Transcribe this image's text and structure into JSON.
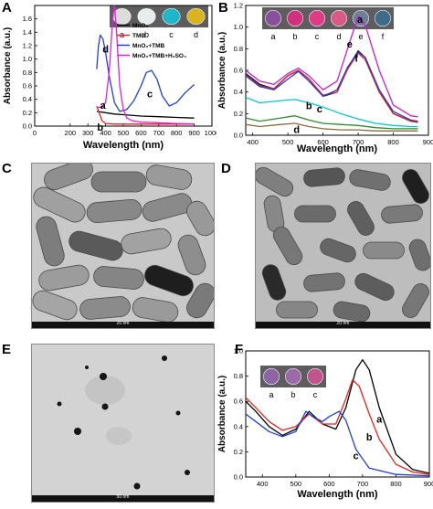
{
  "panels": {
    "A": {
      "label": "A",
      "chart_data": {
        "type": "line",
        "xlabel": "Wavelength (nm)",
        "ylabel": "Absorbance (a.u.)",
        "xlim": [
          0,
          1000
        ],
        "ylim": [
          0,
          1.8
        ],
        "xticks": [
          0,
          200,
          300,
          400,
          500,
          600,
          700,
          800,
          900,
          1000
        ],
        "xtick_labels": [
          "0",
          "200",
          "300",
          "400",
          "500",
          "600",
          "700",
          "800",
          "900",
          "1000"
        ],
        "yticks": [
          0.0,
          0.2,
          0.4,
          0.6,
          0.8,
          1.0,
          1.2,
          1.4,
          1.6
        ],
        "ytick_labels": [
          "0.0",
          "0.2",
          "0.4",
          "0.6",
          "0.8",
          "1.0",
          "1.2",
          "1.4",
          "1.6"
        ],
        "legend": {
          "placement": "top-right",
          "entries": [
            {
              "series_index": 0,
              "label": "MnO₂"
            },
            {
              "series_index": 1,
              "label": "TMB"
            },
            {
              "series_index": 2,
              "label": "MnO₂+TMB"
            },
            {
              "series_index": 3,
              "label": "MnO₂+TMB+H₂SO₄"
            }
          ]
        },
        "series": [
          {
            "color": "#000000",
            "x": [
              350,
              400,
              450,
              500,
              600,
              700,
              800,
              900
            ],
            "y": [
              0.22,
              0.2,
              0.18,
              0.17,
              0.15,
              0.14,
              0.13,
              0.12
            ]
          },
          {
            "color": "#e8221b",
            "x": [
              350,
              380,
              400,
              450,
              500,
              600,
              700,
              800,
              900
            ],
            "y": [
              0.3,
              0.08,
              0.04,
              0.03,
              0.03,
              0.03,
              0.03,
              0.03,
              0.03
            ]
          },
          {
            "color": "#1f3fd6",
            "x": [
              350,
              360,
              370,
              385,
              400,
              420,
              450,
              480,
              520,
              560,
              600,
              630,
              660,
              690,
              720,
              760,
              800,
              850,
              900
            ],
            "y": [
              0.85,
              1.2,
              1.36,
              1.3,
              1.1,
              0.75,
              0.35,
              0.22,
              0.25,
              0.38,
              0.6,
              0.8,
              0.83,
              0.7,
              0.45,
              0.3,
              0.35,
              0.5,
              0.62
            ]
          },
          {
            "color": "#e21ee0",
            "x": [
              350,
              380,
              400,
              420,
              440,
              450,
              460,
              480,
              500,
              520,
              550,
              600,
              700,
              800,
              900
            ],
            "y": [
              0.28,
              0.28,
              0.35,
              0.8,
              1.6,
              1.8,
              1.5,
              0.6,
              0.25,
              0.12,
              0.08,
              0.06,
              0.05,
              0.04,
              0.03
            ]
          }
        ],
        "annotations": [
          {
            "text": "a",
            "x": 385,
            "y": 0.26
          },
          {
            "text": "b",
            "x": 370,
            "y": -0.07
          },
          {
            "text": "c",
            "x": 650,
            "y": 0.43
          },
          {
            "text": "d",
            "x": 400,
            "y": 1.1
          }
        ],
        "inset_vials": {
          "labels": [
            "a",
            "b",
            "c",
            "d"
          ],
          "colors": [
            "#dcdcd8",
            "#e9ecec",
            "#1fb6c9",
            "#d9b51b"
          ]
        }
      }
    },
    "B": {
      "label": "B",
      "chart_data": {
        "type": "line",
        "xlabel": "Wavelength (nm)",
        "ylabel": "Absorbance (a.u.)",
        "xlim": [
          380,
          900
        ],
        "ylim": [
          0,
          1.2
        ],
        "xticks": [
          400,
          500,
          600,
          700,
          800,
          900
        ],
        "xtick_labels": [
          "400",
          "500",
          "600",
          "700",
          "800",
          "900"
        ],
        "yticks": [
          0.0,
          0.2,
          0.4,
          0.6,
          0.8,
          1.0,
          1.2
        ],
        "ytick_labels": [
          "0.0",
          "0.2",
          "0.4",
          "0.6",
          "0.8",
          "1.0",
          "1.2"
        ],
        "series": [
          {
            "color": "#8b6a3a",
            "x": [
              380,
              420,
              480,
              520,
              560,
              600,
              650,
              700,
              750,
              800,
              850,
              870
            ],
            "y": [
              0.1,
              0.08,
              0.1,
              0.11,
              0.08,
              0.06,
              0.05,
              0.05,
              0.04,
              0.04,
              0.04,
              0.04
            ]
          },
          {
            "color": "#2e8b2e",
            "x": [
              380,
              420,
              480,
              520,
              560,
              600,
              650,
              700,
              750,
              800,
              850,
              870
            ],
            "y": [
              0.16,
              0.13,
              0.16,
              0.18,
              0.14,
              0.11,
              0.1,
              0.09,
              0.07,
              0.06,
              0.06,
              0.06
            ]
          },
          {
            "color": "#00c8d2",
            "x": [
              380,
              420,
              480,
              520,
              560,
              600,
              650,
              700,
              750,
              800,
              850,
              870
            ],
            "y": [
              0.35,
              0.3,
              0.32,
              0.33,
              0.3,
              0.26,
              0.2,
              0.15,
              0.11,
              0.09,
              0.08,
              0.08
            ]
          },
          {
            "color": "#000000",
            "x": [
              380,
              420,
              460,
              500,
              530,
              560,
              600,
              640,
              670,
              700,
              720,
              760,
              800,
              850,
              870
            ],
            "y": [
              0.57,
              0.47,
              0.43,
              0.55,
              0.6,
              0.52,
              0.36,
              0.4,
              0.62,
              0.78,
              0.72,
              0.4,
              0.2,
              0.13,
              0.12
            ]
          },
          {
            "color": "#e8221b",
            "x": [
              380,
              420,
              460,
              500,
              530,
              560,
              600,
              640,
              670,
              700,
              720,
              760,
              800,
              850,
              870
            ],
            "y": [
              0.56,
              0.46,
              0.43,
              0.55,
              0.6,
              0.52,
              0.37,
              0.4,
              0.61,
              0.76,
              0.7,
              0.4,
              0.2,
              0.13,
              0.12
            ]
          },
          {
            "color": "#1f3fd6",
            "x": [
              380,
              420,
              460,
              500,
              530,
              560,
              600,
              640,
              670,
              700,
              720,
              760,
              800,
              850,
              870
            ],
            "y": [
              0.55,
              0.45,
              0.42,
              0.52,
              0.59,
              0.5,
              0.36,
              0.42,
              0.63,
              0.77,
              0.72,
              0.42,
              0.22,
              0.14,
              0.13
            ]
          },
          {
            "color": "#c21ee2",
            "x": [
              380,
              420,
              460,
              500,
              530,
              560,
              600,
              640,
              670,
              700,
              720,
              760,
              800,
              850,
              870
            ],
            "y": [
              0.6,
              0.5,
              0.47,
              0.57,
              0.62,
              0.55,
              0.42,
              0.5,
              0.8,
              1.1,
              1.02,
              0.6,
              0.28,
              0.18,
              0.17
            ]
          }
        ],
        "annotations": [
          {
            "text": "a",
            "x": 705,
            "y": 1.04
          },
          {
            "text": "b",
            "x": 560,
            "y": 0.24
          },
          {
            "text": "c",
            "x": 590,
            "y": 0.21
          },
          {
            "text": "d",
            "x": 525,
            "y": 0.02
          },
          {
            "text": "e",
            "x": 676,
            "y": 0.81
          },
          {
            "text": "f",
            "x": 695,
            "y": 0.68
          }
        ],
        "inset_vials": {
          "labels": [
            "a",
            "b",
            "c",
            "d",
            "e",
            "f"
          ],
          "colors": [
            "#8a4f9a",
            "#d22f7e",
            "#de3a86",
            "#d95a86",
            "#6f7f95",
            "#3e6a8c"
          ]
        }
      }
    },
    "C": {
      "label": "C",
      "scale_label": "20 nm"
    },
    "D": {
      "label": "D",
      "scale_label": "20 nm"
    },
    "E": {
      "label": "E",
      "scale_label": "50 nm"
    },
    "F": {
      "label": "F",
      "chart_data": {
        "type": "line",
        "xlabel": "Wavelength (nm)",
        "ylabel": "Absorbance (a.u.)",
        "xlim": [
          350,
          900
        ],
        "ylim": [
          0,
          1.0
        ],
        "xticks": [
          400,
          500,
          600,
          700,
          800,
          900
        ],
        "xtick_labels": [
          "400",
          "500",
          "600",
          "700",
          "800",
          "900"
        ],
        "yticks": [
          0.0,
          0.2,
          0.4,
          0.6,
          0.8,
          1.0
        ],
        "ytick_labels": [
          "0.0",
          "0.2",
          "0.4",
          "0.6",
          "0.8",
          "1.0"
        ],
        "series": [
          {
            "color": "#000000",
            "x": [
              350,
              380,
              420,
              460,
              500,
              540,
              580,
              620,
              650,
              680,
              700,
              720,
              750,
              800,
              850,
              900
            ],
            "y": [
              0.6,
              0.52,
              0.4,
              0.33,
              0.38,
              0.52,
              0.42,
              0.38,
              0.55,
              0.85,
              0.93,
              0.85,
              0.55,
              0.18,
              0.06,
              0.03
            ]
          },
          {
            "color": "#e8221b",
            "x": [
              350,
              380,
              420,
              460,
              500,
              540,
              580,
              620,
              650,
              670,
              690,
              720,
              750,
              800,
              850,
              900
            ],
            "y": [
              0.63,
              0.55,
              0.44,
              0.37,
              0.4,
              0.5,
              0.42,
              0.42,
              0.62,
              0.77,
              0.72,
              0.5,
              0.3,
              0.1,
              0.04,
              0.02
            ]
          },
          {
            "color": "#1f3fd6",
            "x": [
              350,
              380,
              420,
              460,
              500,
              530,
              550,
              580,
              600,
              630,
              650,
              680,
              720,
              800,
              900
            ],
            "y": [
              0.5,
              0.44,
              0.36,
              0.32,
              0.36,
              0.52,
              0.48,
              0.44,
              0.48,
              0.52,
              0.45,
              0.22,
              0.07,
              0.02,
              0.01
            ]
          }
        ],
        "annotations": [
          {
            "text": "a",
            "x": 750,
            "y": 0.43
          },
          {
            "text": "b",
            "x": 720,
            "y": 0.29
          },
          {
            "text": "c",
            "x": 680,
            "y": 0.14
          }
        ],
        "inset_vials": {
          "labels": [
            "a",
            "b",
            "c"
          ],
          "colors": [
            "#8d65a6",
            "#9d6aa8",
            "#c2548d"
          ]
        }
      }
    }
  }
}
